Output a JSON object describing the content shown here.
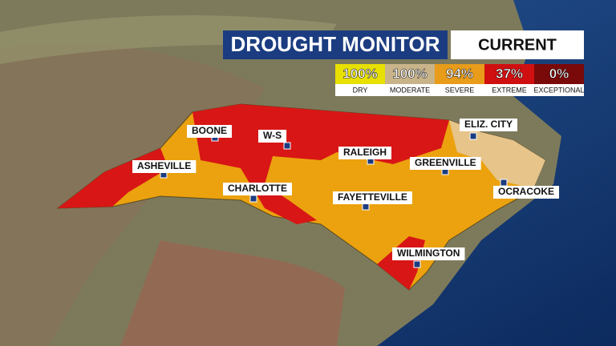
{
  "header": {
    "title": "DROUGHT MONITOR",
    "period": "CURRENT"
  },
  "legend": [
    {
      "value": "100%",
      "label": "DRY"
    },
    {
      "value": "100%",
      "label": "MODERATE"
    },
    {
      "value": "94%",
      "label": "SEVERE"
    },
    {
      "value": "37%",
      "label": "EXTREME"
    },
    {
      "value": "0%",
      "label": "EXCEPTIONAL"
    }
  ],
  "cities": [
    "BOONE",
    "W-S",
    "ASHEVILLE",
    "CHARLOTTE",
    "RALEIGH",
    "GREENVILLE",
    "ELIZ. CITY",
    "OCRACOKE",
    "FAYETTEVILLE",
    "WILMINGTON"
  ]
}
